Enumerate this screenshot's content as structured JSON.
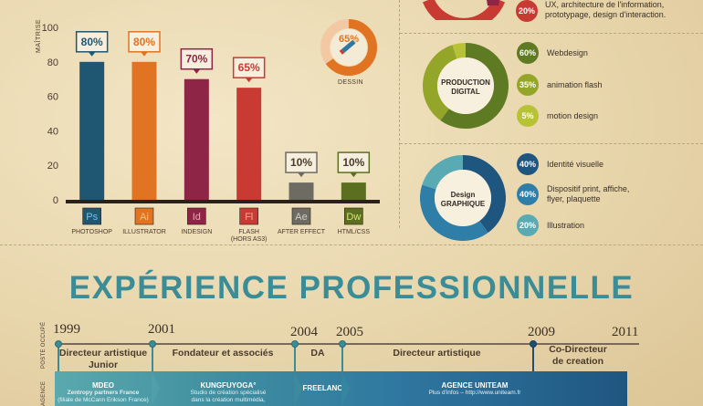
{
  "chart_data": {
    "type": "bar",
    "categories": [
      "PHOTOSHOP",
      "ILLUSTRATOR",
      "INDESIGN",
      "FLASH",
      "AFTER EFFECT",
      "HTML/CSS"
    ],
    "category_sublabels": [
      "",
      "",
      "",
      "(HORS AS3)",
      "",
      ""
    ],
    "values": [
      80,
      80,
      70,
      65,
      10,
      10
    ],
    "value_labels": [
      "80%",
      "80%",
      "70%",
      "65%",
      "10%",
      "10%"
    ],
    "icon_labels": [
      "Ps",
      "Ai",
      "Id",
      "Fl",
      "Ae",
      "Dw"
    ],
    "colors": [
      "#1f5672",
      "#e07422",
      "#8f2546",
      "#c93a32",
      "#6e6b62",
      "#5c6f21"
    ],
    "icon_text_colors": [
      "#6fc3e8",
      "#f9c07a",
      "#f2a3bd",
      "#f7b1a8",
      "#cfcfc9",
      "#d4e27b"
    ],
    "ylabel": "MAÎTRISE",
    "yticks": [
      "0",
      "20",
      "40",
      "60",
      "80",
      "100"
    ],
    "ylim": [
      0,
      100
    ]
  },
  "dessin": {
    "value": 65,
    "label": "65%",
    "caption": "DESSIN",
    "color": "#e07422",
    "track_color": "#f2c9a3"
  },
  "top_partial": {
    "value_label": "20%",
    "text_line1": "UX, architecture de l'information,",
    "text_line2": "prototypage, design d'interaction."
  },
  "production": {
    "center_line1": "PRODUCTION",
    "center_line2": "DIGITAL",
    "items": [
      {
        "pct": "60%",
        "value": 60,
        "label": "Webdesign",
        "color": "#5e7a22"
      },
      {
        "pct": "35%",
        "value": 35,
        "label": "animation flash",
        "color": "#93a629"
      },
      {
        "pct": "5%",
        "value": 5,
        "label": "motion design",
        "color": "#b8c237"
      }
    ]
  },
  "graphique": {
    "center_line1": "Design",
    "center_line2": "GRAPHIQUE",
    "items": [
      {
        "pct": "40%",
        "value": 40,
        "label": "Identité visuelle",
        "color": "#1f5680"
      },
      {
        "pct": "40%",
        "value": 40,
        "label": "Dispositif print, affiche,",
        "label2": "flyer, plaquette",
        "color": "#2f7ea8"
      },
      {
        "pct": "20%",
        "value": 20,
        "label": "Illustration",
        "color": "#5aaab3"
      }
    ]
  },
  "experience": {
    "title": "EXPÉRIENCE PROFESSIONNELLE",
    "side_label_top": "POSTE OCCUPÉ",
    "side_label_bottom": "AGENCE",
    "years": [
      "1999",
      "2001",
      "2004",
      "2005",
      "2009",
      "2011"
    ],
    "roles": [
      {
        "line1": "Directeur artistique",
        "line2": "Junior"
      },
      {
        "line1": "Fondateur et associés",
        "line2": ""
      },
      {
        "line1": "DA",
        "line2": ""
      },
      {
        "line1": "Directeur artistique",
        "line2": ""
      },
      {
        "line1": "Co-Directeur",
        "line2": "de creation"
      }
    ],
    "companies": [
      {
        "name": "MDEO",
        "sub1": "Zentropy partners France",
        "sub2": "(filiale de McCann Erikson France)"
      },
      {
        "name": "KUNGFUYOGA°",
        "sub1": "Studio de création spécialisé",
        "sub2": "dans la création multimédia,"
      },
      {
        "name": "FREELANCE",
        "sub1": "",
        "sub2": ""
      },
      {
        "name": "AGENCE UNITEAM",
        "sub1": "Plus d'infos – http://www.uniteam.fr",
        "sub2": ""
      }
    ]
  }
}
